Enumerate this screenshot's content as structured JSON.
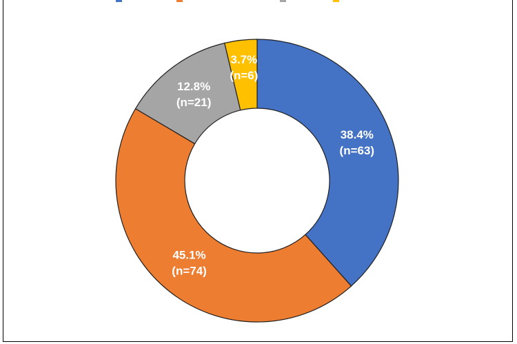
{
  "chart_data": {
    "type": "pie",
    "style": "donut",
    "legend_position": "top (cropped)",
    "series": [
      {
        "value_pct": 38.4,
        "label_pct": "38.4%",
        "label_n": "(n=63)",
        "color": "#4472C4"
      },
      {
        "value_pct": 45.1,
        "label_pct": "45.1%",
        "label_n": "(n=74)",
        "color": "#ED7D31"
      },
      {
        "value_pct": 12.8,
        "label_pct": "12.8%",
        "label_n": "(n=21)",
        "color": "#A5A5A5"
      },
      {
        "value_pct": 3.7,
        "label_pct": "3.7%",
        "label_n": "(n=6)",
        "color": "#FFC000"
      }
    ]
  }
}
